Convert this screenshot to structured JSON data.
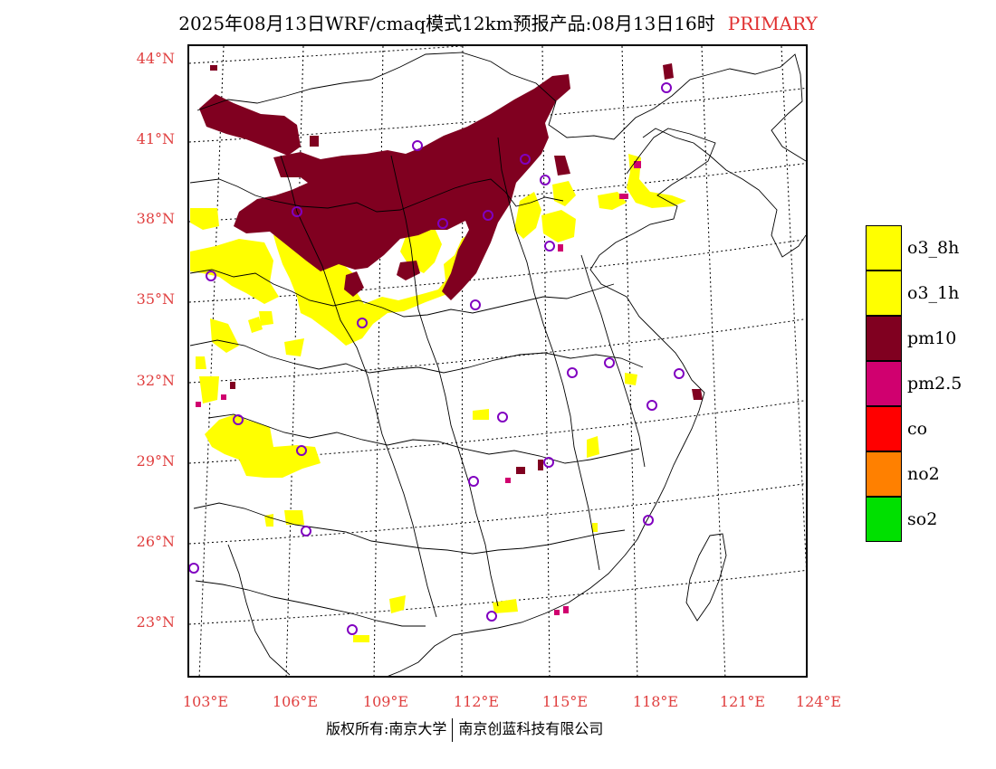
{
  "title": {
    "main": "2025年08月13日WRF/cmaq模式12km预报产品:08月13日16时",
    "tag": "PRIMARY"
  },
  "axes": {
    "lat_labels": [
      "44°N",
      "41°N",
      "38°N",
      "35°N",
      "32°N",
      "29°N",
      "26°N",
      "23°N"
    ],
    "lon_labels": [
      "103°E",
      "106°E",
      "109°E",
      "112°E",
      "115°E",
      "118°E",
      "121°E",
      "124°E"
    ]
  },
  "legend": {
    "items": [
      {
        "label": "o3_8h",
        "color": "#ffff00"
      },
      {
        "label": "o3_1h",
        "color": "#ffff00"
      },
      {
        "label": "pm10",
        "color": "#800020"
      },
      {
        "label": "pm2.5",
        "color": "#d0006f"
      },
      {
        "label": "co",
        "color": "#ff0000"
      },
      {
        "label": "no2",
        "color": "#ff8000"
      },
      {
        "label": "so2",
        "color": "#00e000"
      }
    ]
  },
  "copyright": {
    "left": "版权所有:南京大学",
    "right": "南京创蓝科技有限公司"
  },
  "colors": {
    "label_red": "#e04040",
    "o3": "#ffff00",
    "pm10": "#800020",
    "pm25": "#d0006f",
    "station_circle": "#8000c0"
  }
}
